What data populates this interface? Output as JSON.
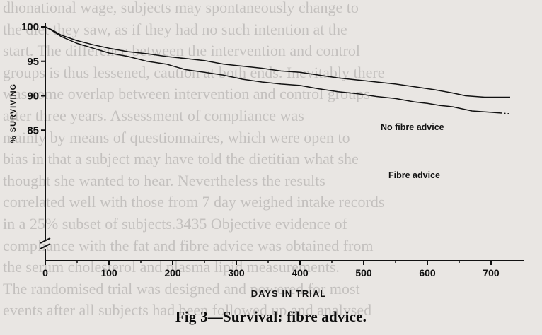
{
  "background_text": [
    "dhonational wage, subjects may spontaneously change to",
    "the diet they saw, as if they had no such intention at the",
    "start. The difference between the intervention and control",
    "groups is thus lessened, caution at both ends. Inevitably there",
    "was some overlap between intervention and control groups",
    "after three years. Assessment of compliance was",
    "mainly by means of questionnaires, which were open to",
    "bias in that a subject may have told the dietitian what she",
    "thought she wanted to hear. Nevertheless the results",
    "correlated well with those from 7 day weighed intake records",
    "in a 25% subset of subjects.3435 Objective evidence of",
    "compliance with the fat and fibre advice was obtained from",
    "the serum cholesterol and plasma lipid measurements.",
    "The randomised trial was designed and powered for most",
    "events after all subjects had been followed up and analysed"
  ],
  "chart_data": {
    "type": "line",
    "title": "",
    "xlabel": "DAYS IN TRIAL",
    "ylabel": "% SURVIVING",
    "xlim": [
      0,
      730
    ],
    "ylim": [
      83,
      100
    ],
    "xticks": [
      0,
      100,
      200,
      300,
      400,
      500,
      600,
      700
    ],
    "yticks": [
      85,
      90,
      95,
      100
    ],
    "axis_break": true,
    "grid": false,
    "legend": "inline labels at the right end of each curve",
    "series": [
      {
        "name": "No fibre advice",
        "color": "#111111",
        "x": [
          0,
          10,
          25,
          50,
          75,
          100,
          130,
          160,
          190,
          220,
          250,
          280,
          310,
          340,
          370,
          400,
          430,
          460,
          490,
          520,
          550,
          580,
          610,
          640,
          660,
          690,
          720,
          730
        ],
        "y": [
          100,
          99.6,
          98.8,
          98.0,
          97.4,
          96.9,
          96.4,
          96.1,
          95.7,
          95.4,
          95.1,
          94.6,
          94.3,
          94.0,
          93.6,
          93.4,
          93.0,
          92.6,
          92.3,
          92.0,
          91.7,
          91.3,
          90.9,
          90.4,
          90.0,
          89.8,
          89.8,
          89.8
        ]
      },
      {
        "name": "Fibre advice",
        "color": "#111111",
        "x": [
          0,
          10,
          25,
          50,
          75,
          100,
          130,
          160,
          190,
          220,
          250,
          280,
          310,
          340,
          370,
          400,
          430,
          460,
          490,
          520,
          550,
          580,
          600,
          620,
          640,
          670,
          700,
          715
        ],
        "y": [
          100,
          99.5,
          98.6,
          97.6,
          96.9,
          96.2,
          95.7,
          95.0,
          94.6,
          93.8,
          93.4,
          93.0,
          92.4,
          92.0,
          91.7,
          91.5,
          91.0,
          90.6,
          90.3,
          89.9,
          89.6,
          89.1,
          88.9,
          88.6,
          88.4,
          87.8,
          87.6,
          87.5
        ]
      }
    ]
  },
  "caption": "Fig 3—Survival: fibre advice."
}
